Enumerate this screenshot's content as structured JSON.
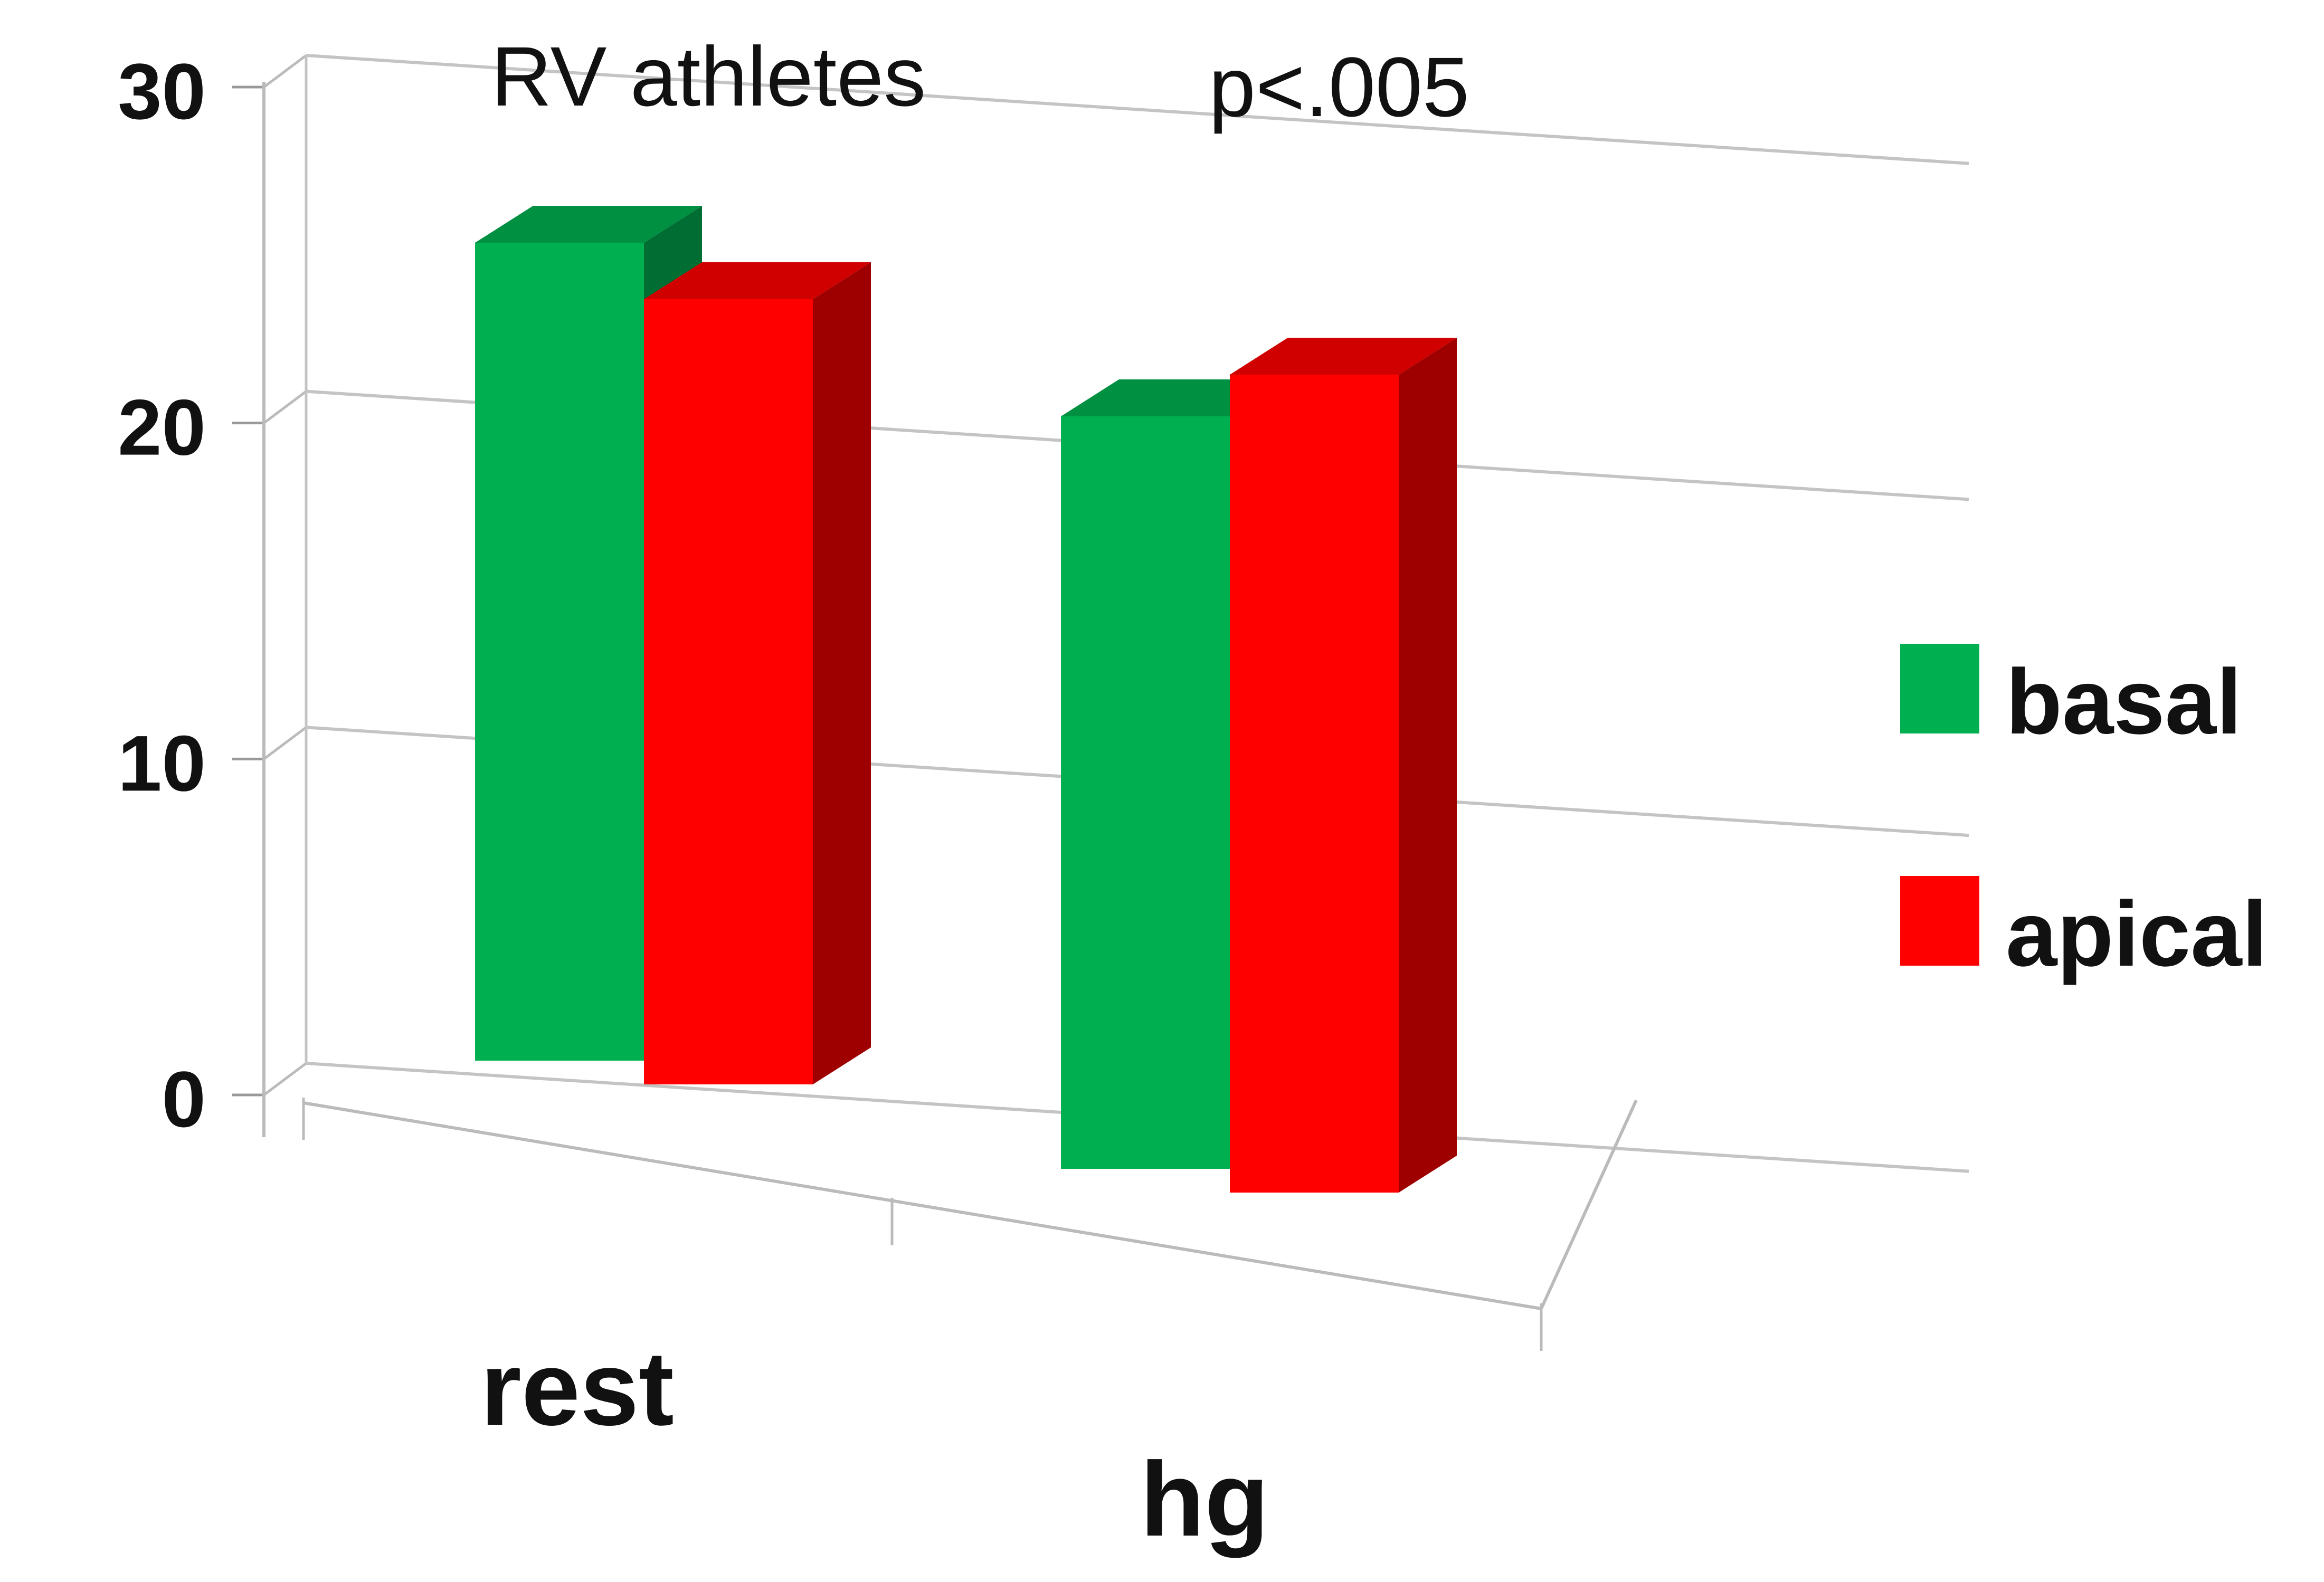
{
  "chart_data": {
    "type": "bar",
    "title": "",
    "xlabel": "",
    "ylabel": "",
    "categories": [
      "rest",
      "hg"
    ],
    "series": [
      {
        "name": "basal",
        "values": [
          25,
          23
        ],
        "color": "#00b050"
      },
      {
        "name": "apical",
        "values": [
          24,
          25
        ],
        "color": "#ff0000"
      }
    ],
    "ylim": [
      0,
      30
    ],
    "yticks": [
      "0",
      "10",
      "20",
      "30"
    ],
    "annotations": [
      "RV athletes",
      "p<.005"
    ],
    "grid": true,
    "legend": "right",
    "style": "3d"
  }
}
